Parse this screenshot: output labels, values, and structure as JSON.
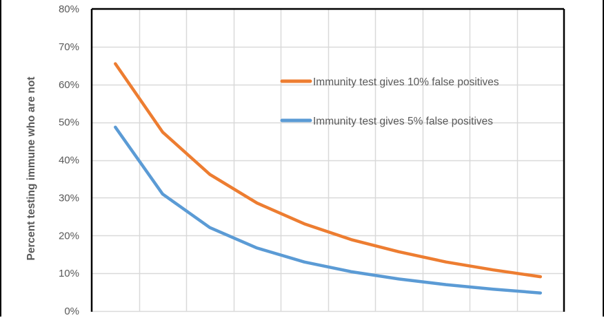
{
  "chart_data": {
    "type": "line",
    "title": "",
    "xlabel": "",
    "ylabel": "Percent  testing immune who are not",
    "ylim": [
      0,
      0.8
    ],
    "y_ticks": [
      "0%",
      "10%",
      "20%",
      "30%",
      "40%",
      "50%",
      "60%",
      "70%",
      "80%"
    ],
    "x_tick_labels_visible": false,
    "x": [
      1,
      2,
      3,
      4,
      5,
      6,
      7,
      8,
      9,
      10
    ],
    "grid": true,
    "legend_position": "inside upper right",
    "series": [
      {
        "name": "Immunity test gives 10% false positives",
        "color": "#ED7D31",
        "values": [
          0.655,
          0.474,
          0.362,
          0.286,
          0.231,
          0.189,
          0.157,
          0.13,
          0.109,
          0.091
        ]
      },
      {
        "name": "Immunity test gives 5% false positives",
        "color": "#5B9BD5",
        "values": [
          0.487,
          0.31,
          0.221,
          0.167,
          0.13,
          0.104,
          0.085,
          0.07,
          0.058,
          0.048
        ]
      }
    ]
  },
  "y_axis": {
    "label": "Percent  testing immune who are not",
    "ticks": [
      "80%",
      "70%",
      "60%",
      "50%",
      "40%",
      "30%",
      "20%",
      "10%",
      "0%"
    ]
  },
  "legend": {
    "items": [
      {
        "label": "Immunity test gives 10% false positives",
        "color": "#ED7D31"
      },
      {
        "label": "Immunity test gives 5% false positives",
        "color": "#5B9BD5"
      }
    ]
  },
  "colors": {
    "grid": "#D9D9D9",
    "axis": "#000000",
    "text": "#595959"
  }
}
